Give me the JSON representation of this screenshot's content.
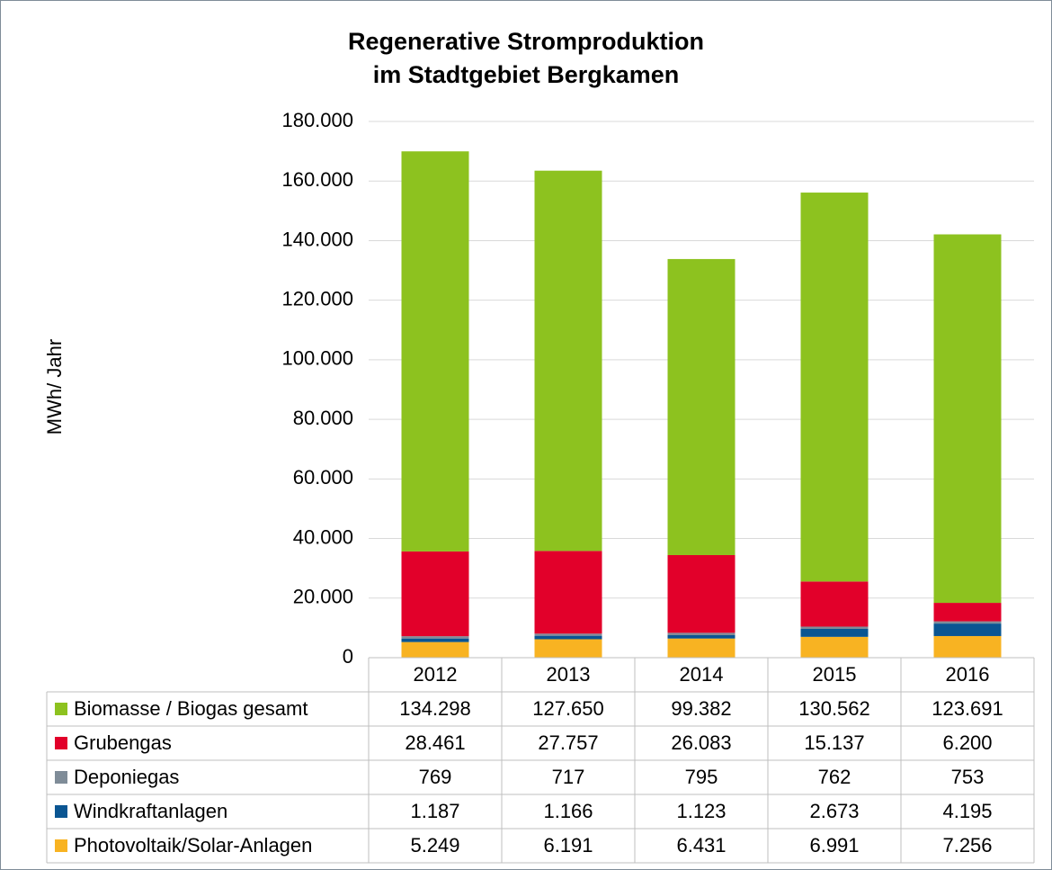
{
  "chart_data": {
    "type": "stacked_bar",
    "title": [
      "Regenerative Stromproduktion",
      "im Stadtgebiet Bergkamen"
    ],
    "y_label": "MWh/ Jahr",
    "categories": [
      "2012",
      "2013",
      "2014",
      "2015",
      "2016"
    ],
    "series": [
      {
        "name": "Biomasse / Biogas gesamt",
        "color": "#8dc21f",
        "values": [
          134298,
          127650,
          99382,
          130562,
          123691
        ],
        "value_labels": [
          "134.298",
          "127.650",
          "99.382",
          "130.562",
          "123.691"
        ]
      },
      {
        "name": "Grubengas",
        "color": "#e2002a",
        "values": [
          28461,
          27757,
          26083,
          15137,
          6200
        ],
        "value_labels": [
          "28.461",
          "27.757",
          "26.083",
          "15.137",
          "6.200"
        ]
      },
      {
        "name": "Deponiegas",
        "color": "#7f8c98",
        "values": [
          769,
          717,
          795,
          762,
          753
        ]
      },
      {
        "name": "Windkraftanlagen",
        "color": "#0a5592",
        "values": [
          1187,
          1166,
          1123,
          2673,
          4195
        ],
        "value_labels": [
          "1.187",
          "1.166",
          "1.123",
          "2.673",
          "4.195"
        ]
      },
      {
        "name": "Photovoltaik/Solar-Anlagen",
        "color": "#f8b322",
        "values": [
          5249,
          6191,
          6431,
          6991,
          7256
        ],
        "value_labels": [
          "5.249",
          "6.191",
          "6.431",
          "6.991",
          "7.256"
        ]
      }
    ],
    "ylim": [
      0,
      180000
    ],
    "yticks": [
      0,
      {
        "value": 20000,
        "label": "20.000"
      },
      {
        "value": 40000,
        "label": "40.000"
      },
      {
        "value": 60000,
        "label": "60.000"
      },
      {
        "value": 80000,
        "label": "80.000"
      },
      {
        "value": 100000,
        "label": "100.000"
      },
      {
        "value": 120000,
        "label": "120.000"
      },
      {
        "value": 140000,
        "label": "140.000"
      },
      {
        "value": 160000,
        "label": "160.000"
      },
      {
        "value": 180000,
        "label": "180.000"
      }
    ],
    "grid": true
  }
}
